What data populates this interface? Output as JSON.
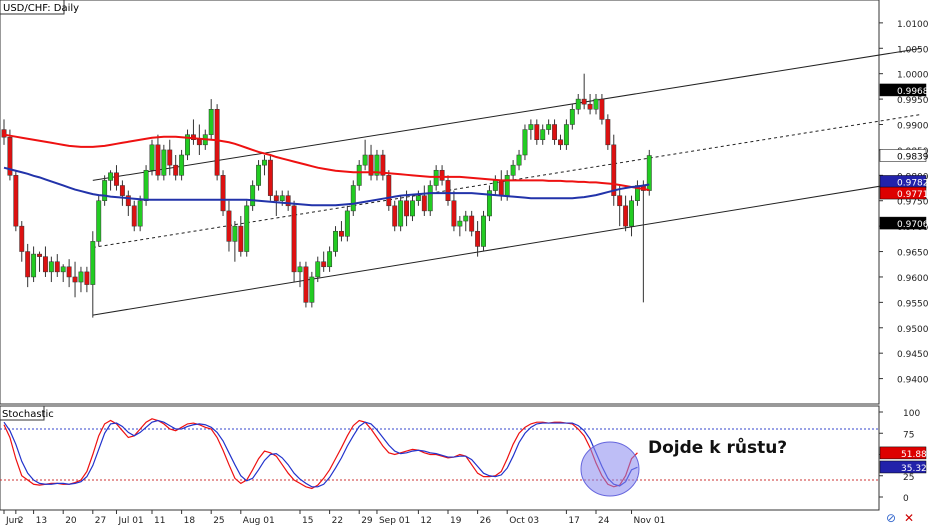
{
  "main_title": "USD/CHF: Daily",
  "stoch_title": "Stochastic",
  "annotation": "Dojde k růstu?",
  "price_axis": {
    "min": 0.935,
    "max": 1.0145,
    "ticks": [
      "1.0100",
      "1.0050",
      "1.0000",
      "0.9950",
      "0.9900",
      "0.9850",
      "0.9800",
      "0.9750",
      "0.9700",
      "0.9650",
      "0.9600",
      "0.9550",
      "0.9500",
      "0.9450",
      "0.9400"
    ],
    "tick_values": [
      1.01,
      1.005,
      1.0,
      0.995,
      0.99,
      0.985,
      0.98,
      0.975,
      0.97,
      0.965,
      0.96,
      0.955,
      0.95,
      0.945,
      0.94
    ]
  },
  "price_labels": [
    {
      "text": "0.9968",
      "value": 0.9968,
      "fill": "#000000",
      "color": "#ffffff"
    },
    {
      "text": "0.9839",
      "value": 0.9839,
      "fill": "#ffffff",
      "color": "#000000"
    },
    {
      "text": "0.9782",
      "value": 0.9782,
      "fill": "#2222aa",
      "color": "#ffffff"
    },
    {
      "text": "0.9771",
      "value": 0.9771,
      "fill": "#dd0000",
      "color": "#ffffff"
    },
    {
      "text": "0.9706",
      "value": 0.9706,
      "fill": "#000000",
      "color": "#ffffff"
    }
  ],
  "stoch_axis": {
    "ticks": [
      "100",
      "75",
      "50",
      "25",
      "0"
    ],
    "tick_values": [
      100,
      75,
      50,
      25,
      0
    ],
    "levels": [
      80,
      20
    ]
  },
  "stoch_labels": [
    {
      "text": "51.88",
      "value": 51.88,
      "fill": "#dd0000",
      "color": "#ffffff"
    },
    {
      "text": "35.32",
      "value": 35.32,
      "fill": "#2222aa",
      "color": "#ffffff"
    }
  ],
  "x_labels": [
    {
      "text": "Jun",
      "i": 0
    },
    {
      "text": "2",
      "i": 2
    },
    {
      "text": "13",
      "i": 5
    },
    {
      "text": "20",
      "i": 10
    },
    {
      "text": "27",
      "i": 15
    },
    {
      "text": "Jul 01",
      "i": 19
    },
    {
      "text": "11",
      "i": 25
    },
    {
      "text": "18",
      "i": 30
    },
    {
      "text": "25",
      "i": 35
    },
    {
      "text": "Aug 01",
      "i": 40
    },
    {
      "text": "15",
      "i": 50
    },
    {
      "text": "22",
      "i": 55
    },
    {
      "text": "29",
      "i": 60
    },
    {
      "text": "Sep 01",
      "i": 63
    },
    {
      "text": "12",
      "i": 70
    },
    {
      "text": "19",
      "i": 75
    },
    {
      "text": "26",
      "i": 80
    },
    {
      "text": "Oct 03",
      "i": 85
    },
    {
      "text": "17",
      "i": 95
    },
    {
      "text": "24",
      "i": 100
    },
    {
      "text": "Nov 01",
      "i": 106
    }
  ],
  "chart_data": {
    "type": "candlestick",
    "title": "USD/CHF: Daily",
    "candles": [
      [
        0.989,
        0.991,
        0.986,
        0.9875
      ],
      [
        0.9875,
        0.989,
        0.979,
        0.98
      ],
      [
        0.98,
        0.981,
        0.969,
        0.97
      ],
      [
        0.97,
        0.971,
        0.963,
        0.965
      ],
      [
        0.965,
        0.9665,
        0.958,
        0.96
      ],
      [
        0.96,
        0.966,
        0.959,
        0.9645
      ],
      [
        0.9645,
        0.965,
        0.961,
        0.964
      ],
      [
        0.964,
        0.966,
        0.96,
        0.961
      ],
      [
        0.961,
        0.964,
        0.959,
        0.963
      ],
      [
        0.963,
        0.9645,
        0.96,
        0.961
      ],
      [
        0.961,
        0.9625,
        0.959,
        0.962
      ],
      [
        0.962,
        0.9635,
        0.958,
        0.96
      ],
      [
        0.96,
        0.963,
        0.956,
        0.959
      ],
      [
        0.959,
        0.962,
        0.957,
        0.961
      ],
      [
        0.961,
        0.962,
        0.957,
        0.9585
      ],
      [
        0.9585,
        0.969,
        0.952,
        0.967
      ],
      [
        0.967,
        0.976,
        0.966,
        0.975
      ],
      [
        0.975,
        0.98,
        0.974,
        0.979
      ],
      [
        0.979,
        0.981,
        0.977,
        0.9805
      ],
      [
        0.9805,
        0.982,
        0.977,
        0.978
      ],
      [
        0.978,
        0.979,
        0.974,
        0.976
      ],
      [
        0.976,
        0.977,
        0.972,
        0.974
      ],
      [
        0.974,
        0.975,
        0.969,
        0.97
      ],
      [
        0.97,
        0.976,
        0.969,
        0.975
      ],
      [
        0.975,
        0.982,
        0.974,
        0.981
      ],
      [
        0.981,
        0.987,
        0.98,
        0.986
      ],
      [
        0.986,
        0.988,
        0.979,
        0.98
      ],
      [
        0.98,
        0.986,
        0.979,
        0.985
      ],
      [
        0.985,
        0.987,
        0.98,
        0.982
      ],
      [
        0.982,
        0.984,
        0.979,
        0.98
      ],
      [
        0.98,
        0.985,
        0.979,
        0.984
      ],
      [
        0.984,
        0.989,
        0.983,
        0.988
      ],
      [
        0.988,
        0.991,
        0.986,
        0.987
      ],
      [
        0.987,
        0.99,
        0.984,
        0.986
      ],
      [
        0.986,
        0.989,
        0.985,
        0.988
      ],
      [
        0.988,
        0.995,
        0.987,
        0.993
      ],
      [
        0.993,
        0.994,
        0.979,
        0.98
      ],
      [
        0.98,
        0.981,
        0.972,
        0.973
      ],
      [
        0.973,
        0.975,
        0.965,
        0.967
      ],
      [
        0.967,
        0.971,
        0.963,
        0.97
      ],
      [
        0.97,
        0.972,
        0.964,
        0.965
      ],
      [
        0.965,
        0.975,
        0.964,
        0.974
      ],
      [
        0.974,
        0.979,
        0.973,
        0.978
      ],
      [
        0.978,
        0.983,
        0.977,
        0.982
      ],
      [
        0.982,
        0.984,
        0.98,
        0.983
      ],
      [
        0.983,
        0.984,
        0.975,
        0.976
      ],
      [
        0.976,
        0.977,
        0.972,
        0.975
      ],
      [
        0.975,
        0.977,
        0.974,
        0.976
      ],
      [
        0.976,
        0.977,
        0.973,
        0.974
      ],
      [
        0.974,
        0.975,
        0.959,
        0.961
      ],
      [
        0.961,
        0.963,
        0.958,
        0.962
      ],
      [
        0.962,
        0.963,
        0.954,
        0.955
      ],
      [
        0.955,
        0.961,
        0.954,
        0.96
      ],
      [
        0.96,
        0.964,
        0.959,
        0.963
      ],
      [
        0.963,
        0.965,
        0.961,
        0.962
      ],
      [
        0.962,
        0.966,
        0.961,
        0.965
      ],
      [
        0.965,
        0.97,
        0.964,
        0.969
      ],
      [
        0.969,
        0.971,
        0.967,
        0.968
      ],
      [
        0.968,
        0.974,
        0.967,
        0.973
      ],
      [
        0.973,
        0.979,
        0.972,
        0.978
      ],
      [
        0.978,
        0.983,
        0.977,
        0.982
      ],
      [
        0.982,
        0.987,
        0.981,
        0.984
      ],
      [
        0.984,
        0.986,
        0.979,
        0.98
      ],
      [
        0.98,
        0.985,
        0.979,
        0.984
      ],
      [
        0.984,
        0.985,
        0.979,
        0.98
      ],
      [
        0.98,
        0.981,
        0.973,
        0.974
      ],
      [
        0.974,
        0.975,
        0.969,
        0.97
      ],
      [
        0.97,
        0.976,
        0.969,
        0.975
      ],
      [
        0.975,
        0.977,
        0.97,
        0.972
      ],
      [
        0.972,
        0.976,
        0.971,
        0.975
      ],
      [
        0.975,
        0.977,
        0.974,
        0.976
      ],
      [
        0.976,
        0.978,
        0.972,
        0.973
      ],
      [
        0.973,
        0.979,
        0.972,
        0.978
      ],
      [
        0.978,
        0.982,
        0.977,
        0.981
      ],
      [
        0.981,
        0.982,
        0.978,
        0.979
      ],
      [
        0.979,
        0.98,
        0.974,
        0.975
      ],
      [
        0.975,
        0.977,
        0.969,
        0.97
      ],
      [
        0.97,
        0.972,
        0.968,
        0.971
      ],
      [
        0.971,
        0.973,
        0.969,
        0.972
      ],
      [
        0.972,
        0.973,
        0.968,
        0.969
      ],
      [
        0.969,
        0.971,
        0.964,
        0.966
      ],
      [
        0.966,
        0.973,
        0.965,
        0.972
      ],
      [
        0.972,
        0.978,
        0.971,
        0.977
      ],
      [
        0.977,
        0.98,
        0.976,
        0.979
      ],
      [
        0.979,
        0.981,
        0.975,
        0.976
      ],
      [
        0.976,
        0.981,
        0.975,
        0.98
      ],
      [
        0.98,
        0.983,
        0.979,
        0.982
      ],
      [
        0.982,
        0.985,
        0.981,
        0.984
      ],
      [
        0.984,
        0.99,
        0.983,
        0.989
      ],
      [
        0.989,
        0.991,
        0.987,
        0.99
      ],
      [
        0.99,
        0.991,
        0.986,
        0.987
      ],
      [
        0.987,
        0.99,
        0.986,
        0.989
      ],
      [
        0.989,
        0.991,
        0.988,
        0.99
      ],
      [
        0.99,
        0.991,
        0.986,
        0.987
      ],
      [
        0.987,
        0.988,
        0.985,
        0.986
      ],
      [
        0.986,
        0.991,
        0.985,
        0.99
      ],
      [
        0.99,
        0.994,
        0.989,
        0.993
      ],
      [
        0.993,
        0.996,
        0.992,
        0.995
      ],
      [
        0.995,
        1.0,
        0.993,
        0.994
      ],
      [
        0.994,
        0.996,
        0.992,
        0.993
      ],
      [
        0.993,
        0.996,
        0.992,
        0.995
      ],
      [
        0.995,
        0.996,
        0.99,
        0.991
      ],
      [
        0.991,
        0.992,
        0.985,
        0.986
      ],
      [
        0.986,
        0.988,
        0.974,
        0.976
      ],
      [
        0.976,
        0.978,
        0.97,
        0.974
      ],
      [
        0.974,
        0.976,
        0.969,
        0.97
      ],
      [
        0.97,
        0.976,
        0.968,
        0.975
      ],
      [
        0.975,
        0.979,
        0.974,
        0.978
      ],
      [
        0.978,
        0.979,
        0.955,
        0.977
      ],
      [
        0.977,
        0.985,
        0.976,
        0.9839
      ]
    ],
    "ma_red": [
      0.988,
      0.9878,
      0.9876,
      0.9874,
      0.9872,
      0.987,
      0.9868,
      0.9866,
      0.9864,
      0.9862,
      0.986,
      0.9858,
      0.9857,
      0.9856,
      0.9856,
      0.9856,
      0.9857,
      0.9858,
      0.986,
      0.9862,
      0.9864,
      0.9866,
      0.9868,
      0.987,
      0.9872,
      0.9874,
      0.9875,
      0.9876,
      0.9876,
      0.9876,
      0.9875,
      0.9874,
      0.9873,
      0.9872,
      0.9871,
      0.987,
      0.9869,
      0.9867,
      0.9865,
      0.9862,
      0.9858,
      0.9854,
      0.985,
      0.9846,
      0.9843,
      0.984,
      0.9836,
      0.9833,
      0.983,
      0.9827,
      0.9824,
      0.9821,
      0.9818,
      0.9815,
      0.9813,
      0.9811,
      0.9809,
      0.9808,
      0.9807,
      0.9806,
      0.9806,
      0.9806,
      0.9806,
      0.9806,
      0.9805,
      0.9804,
      0.9803,
      0.9802,
      0.9801,
      0.98,
      0.9799,
      0.9798,
      0.9797,
      0.9797,
      0.9797,
      0.9797,
      0.9797,
      0.9797,
      0.9796,
      0.9795,
      0.9794,
      0.9793,
      0.9792,
      0.9791,
      0.979,
      0.979,
      0.979,
      0.979,
      0.979,
      0.979,
      0.979,
      0.979,
      0.9789,
      0.9789,
      0.9789,
      0.9788,
      0.9788,
      0.9787,
      0.9787,
      0.9786,
      0.9786,
      0.9785,
      0.9784,
      0.9783,
      0.9781,
      0.9779,
      0.9777,
      0.9775,
      0.9773,
      0.9771
    ],
    "ma_blue": [
      0.9815,
      0.9812,
      0.9809,
      0.9806,
      0.9803,
      0.9799,
      0.9796,
      0.9792,
      0.9788,
      0.9784,
      0.978,
      0.9776,
      0.9772,
      0.9769,
      0.9766,
      0.9763,
      0.9761,
      0.976,
      0.9758,
      0.9757,
      0.9756,
      0.9755,
      0.9754,
      0.9753,
      0.9752,
      0.9752,
      0.9752,
      0.9752,
      0.9752,
      0.9752,
      0.9752,
      0.9752,
      0.9752,
      0.9752,
      0.9752,
      0.9752,
      0.9752,
      0.9752,
      0.9752,
      0.9752,
      0.9752,
      0.9752,
      0.9751,
      0.975,
      0.9749,
      0.9748,
      0.9747,
      0.9746,
      0.9745,
      0.9744,
      0.9743,
      0.9742,
      0.9741,
      0.9741,
      0.9741,
      0.9741,
      0.9741,
      0.9742,
      0.9743,
      0.9744,
      0.9746,
      0.9748,
      0.975,
      0.9752,
      0.9754,
      0.9756,
      0.9758,
      0.976,
      0.9761,
      0.9762,
      0.9763,
      0.9764,
      0.9765,
      0.9765,
      0.9765,
      0.9765,
      0.9765,
      0.9765,
      0.9765,
      0.9765,
      0.9764,
      0.9763,
      0.9762,
      0.9761,
      0.976,
      0.9759,
      0.9758,
      0.9757,
      0.9756,
      0.9755,
      0.9755,
      0.9755,
      0.9755,
      0.9755,
      0.9755,
      0.9755,
      0.9755,
      0.9756,
      0.9757,
      0.9759,
      0.9761,
      0.9764,
      0.9767,
      0.977,
      0.9773,
      0.9775,
      0.9777,
      0.9778,
      0.978,
      0.9782
    ],
    "channel": {
      "lower": [
        [
          15,
          0.9525
        ],
        [
          155,
          0.9792
        ]
      ],
      "upper": [
        [
          15,
          0.979
        ],
        [
          155,
          1.005
        ]
      ],
      "middle": [
        [
          15,
          0.9658
        ],
        [
          155,
          0.992
        ]
      ]
    },
    "stoch_k": [
      85,
      70,
      45,
      25,
      20,
      15,
      14,
      15,
      16,
      16,
      15,
      15,
      17,
      20,
      30,
      50,
      72,
      86,
      90,
      86,
      78,
      70,
      72,
      80,
      88,
      92,
      90,
      86,
      80,
      78,
      82,
      86,
      87,
      85,
      82,
      80,
      70,
      55,
      38,
      22,
      16,
      20,
      32,
      45,
      54,
      52,
      48,
      38,
      28,
      20,
      16,
      12,
      10,
      14,
      22,
      32,
      45,
      58,
      72,
      84,
      90,
      88,
      80,
      70,
      60,
      52,
      50,
      52,
      54,
      56,
      55,
      52,
      50,
      50,
      48,
      46,
      47,
      50,
      48,
      38,
      28,
      24,
      24,
      25,
      30,
      45,
      62,
      75,
      82,
      86,
      88,
      88,
      87,
      88,
      88,
      87,
      86,
      80,
      72,
      58,
      40,
      25,
      15,
      12,
      14,
      25,
      45,
      52
    ],
    "stoch_d": [
      88,
      78,
      62,
      42,
      28,
      20,
      16,
      15,
      15,
      16,
      16,
      15,
      16,
      18,
      24,
      37,
      56,
      75,
      86,
      87,
      83,
      76,
      72,
      76,
      82,
      88,
      90,
      88,
      84,
      80,
      80,
      83,
      85,
      86,
      85,
      82,
      76,
      66,
      52,
      38,
      25,
      19,
      22,
      32,
      43,
      50,
      51,
      46,
      38,
      28,
      21,
      16,
      12,
      12,
      15,
      23,
      34,
      46,
      60,
      72,
      83,
      88,
      86,
      79,
      70,
      61,
      54,
      51,
      52,
      54,
      55,
      54,
      52,
      51,
      49,
      47,
      47,
      48,
      48,
      44,
      36,
      28,
      25,
      24,
      26,
      34,
      48,
      64,
      75,
      82,
      86,
      87,
      87,
      87,
      87,
      87,
      87,
      84,
      78,
      68,
      52,
      36,
      22,
      15,
      13,
      18,
      32,
      35
    ]
  }
}
